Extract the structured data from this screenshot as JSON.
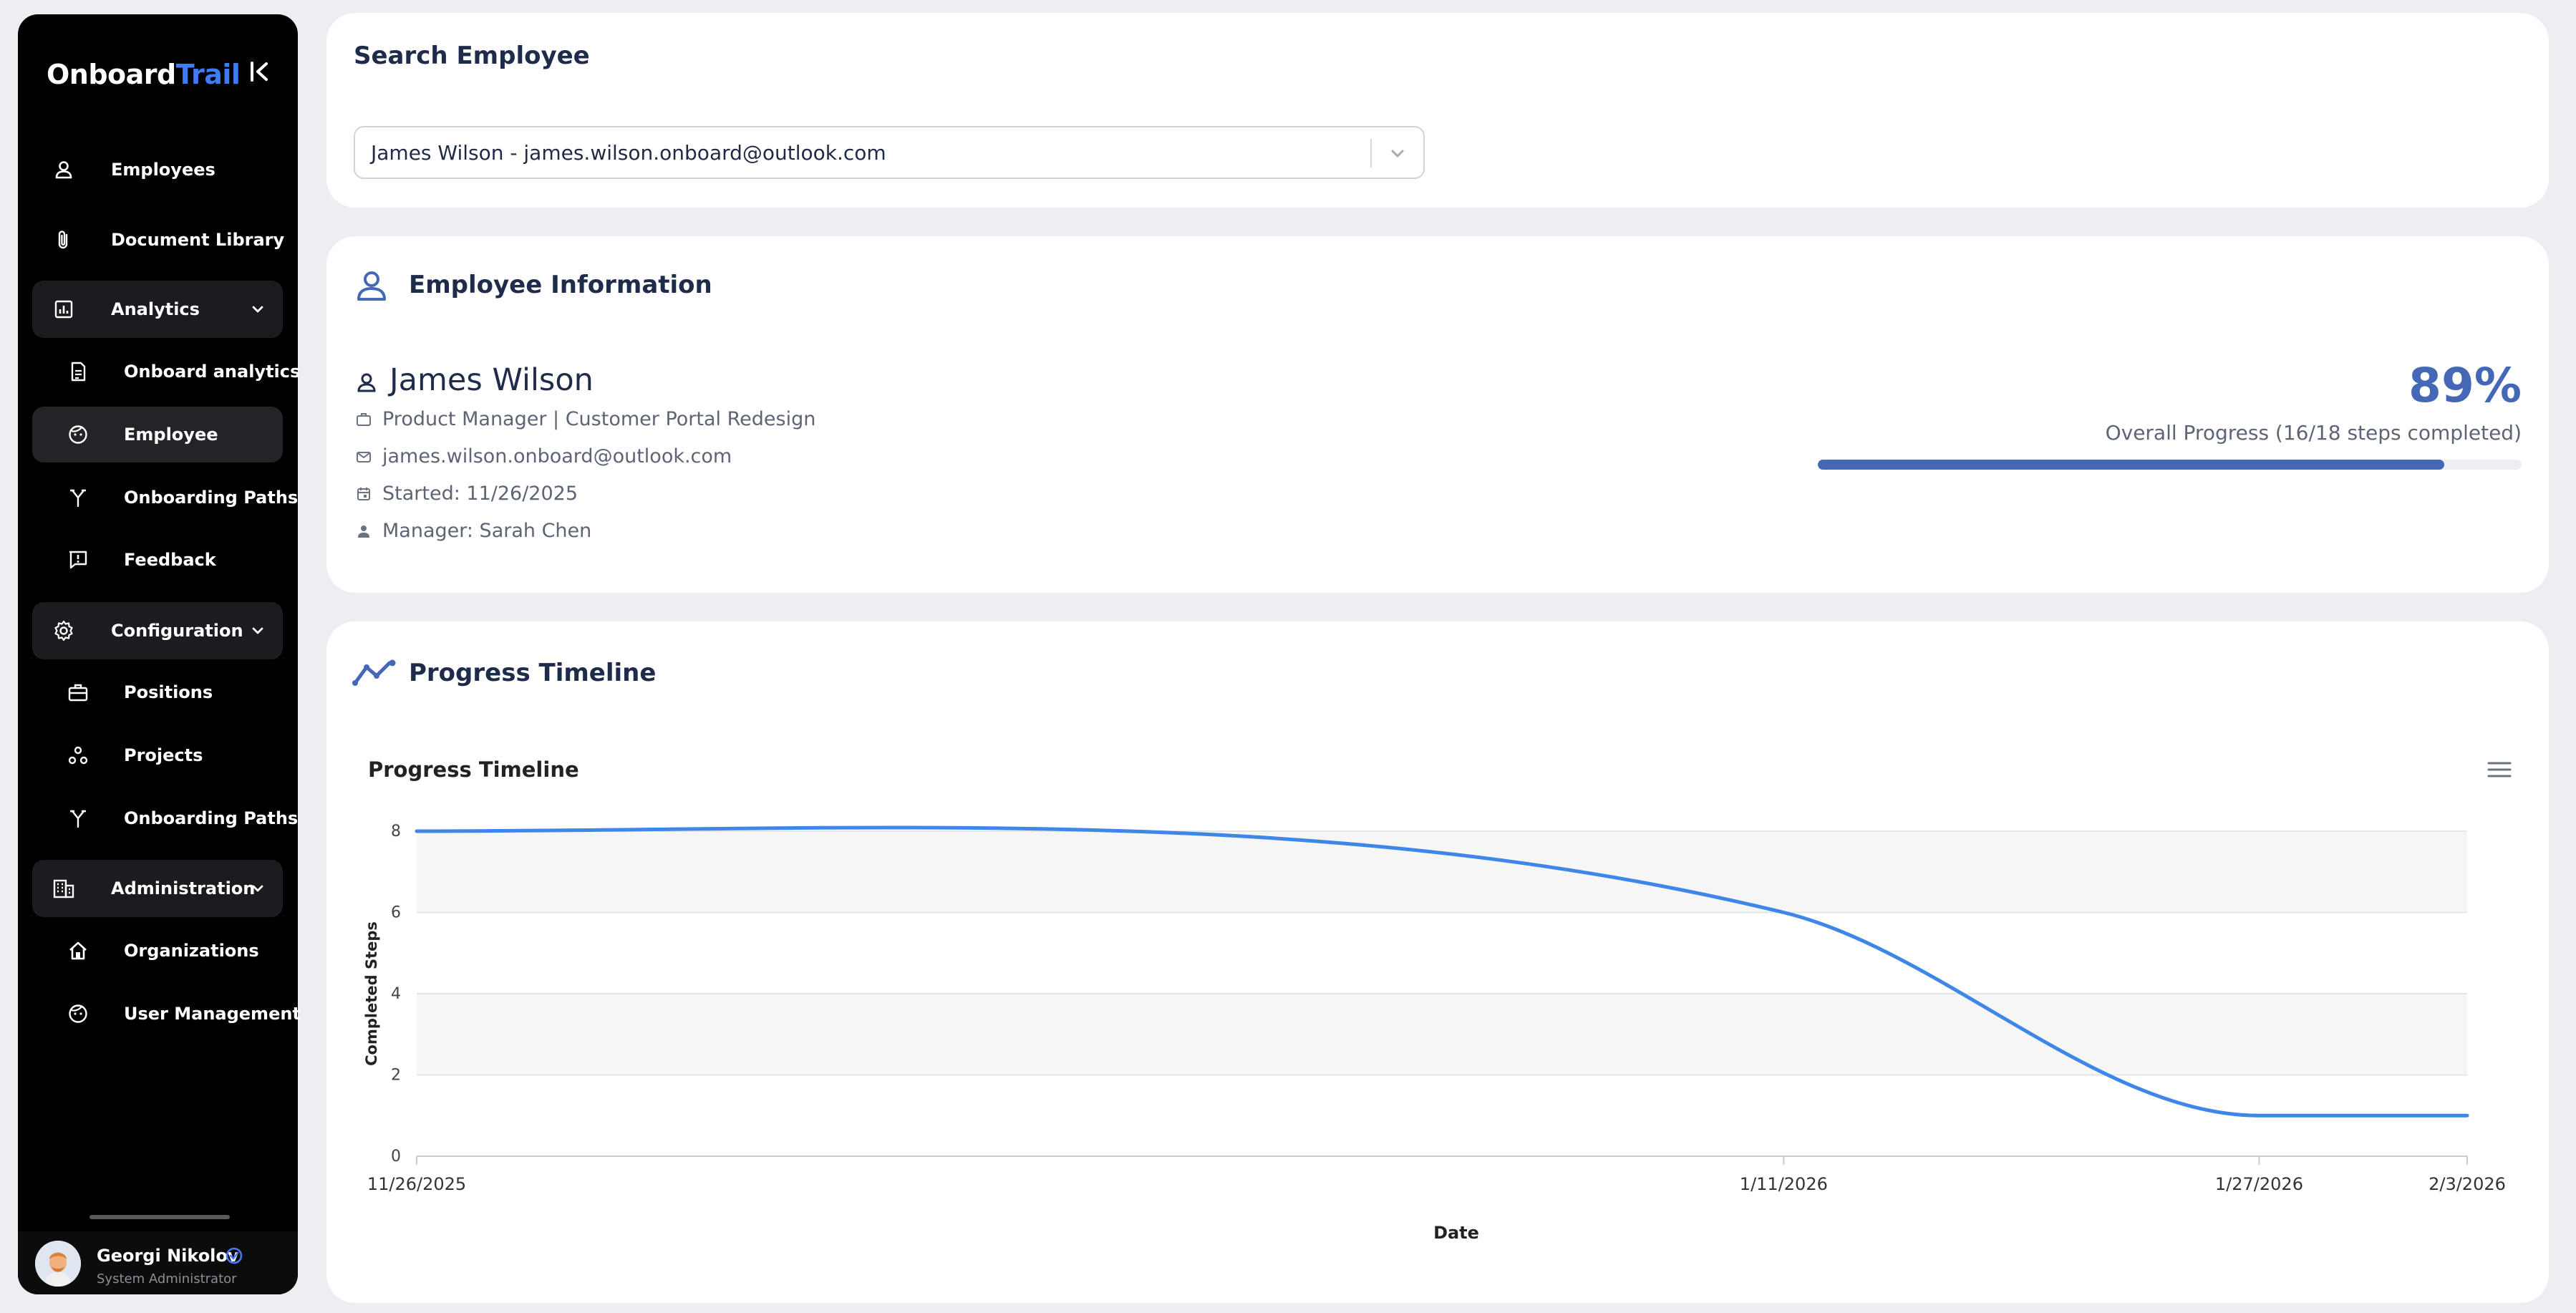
{
  "app": {
    "logo_part1": "Onboard",
    "logo_part2": "Trail"
  },
  "colors": {
    "accent": "#3f7bf5",
    "brand": "#4468b5",
    "sidebar_bg": "#000000",
    "page_bg": "#edeef1"
  },
  "sidebar": {
    "items": [
      {
        "label": "Employees",
        "icon": "person-icon"
      },
      {
        "label": "Document Library",
        "icon": "paperclip-icon"
      },
      {
        "label": "Analytics",
        "icon": "chart-icon",
        "group": true
      },
      {
        "label": "Onboard analytics",
        "icon": "report-icon",
        "sub": true
      },
      {
        "label": "Employee",
        "icon": "face-icon",
        "sub": true,
        "active": true
      },
      {
        "label": "Onboarding Paths",
        "icon": "fork-icon",
        "sub": true
      },
      {
        "label": "Feedback",
        "icon": "feedback-icon",
        "sub": true
      },
      {
        "label": "Configuration",
        "icon": "gear-icon",
        "group": true
      },
      {
        "label": "Positions",
        "icon": "briefcase-icon",
        "sub": true
      },
      {
        "label": "Projects",
        "icon": "nodes-icon",
        "sub": true
      },
      {
        "label": "Onboarding Paths",
        "icon": "fork-icon",
        "sub": true
      },
      {
        "label": "Administration",
        "icon": "building-icon",
        "group": true
      },
      {
        "label": "Organizations",
        "icon": "home-icon",
        "sub": true
      },
      {
        "label": "User Management",
        "icon": "face-icon",
        "sub": true
      }
    ],
    "user": {
      "name": "Georgi Nikolov",
      "role": "System Administrator"
    }
  },
  "search": {
    "title": "Search Employee",
    "selected": "James Wilson - james.wilson.onboard@outlook.com"
  },
  "employee": {
    "section_title": "Employee Information",
    "name": "James Wilson",
    "position": "Product Manager | Customer Portal Redesign",
    "email": "james.wilson.onboard@outlook.com",
    "started": "Started: 11/26/2025",
    "manager": "Manager: Sarah Chen",
    "progress_pct_text": "89%",
    "progress_fraction": 0.89,
    "progress_label": "Overall Progress (16/18 steps completed)"
  },
  "timeline": {
    "section_title": "Progress Timeline"
  },
  "chart_data": {
    "type": "line",
    "title": "Progress Timeline",
    "xlabel": "Date",
    "ylabel": "Completed Steps",
    "x": [
      "11/26/2025",
      "1/11/2026",
      "1/27/2026",
      "2/3/2026"
    ],
    "x_ticks": [
      "11/26/2025",
      "1/11/2026",
      "1/27/2026",
      "2/3/2026"
    ],
    "y_ticks": [
      0,
      2,
      4,
      6,
      8
    ],
    "ylim": [
      0,
      8
    ],
    "series": [
      {
        "values": [
          8,
          6,
          1,
          1
        ],
        "color": "#3e86e8"
      }
    ],
    "grid": true,
    "smooth": true
  }
}
